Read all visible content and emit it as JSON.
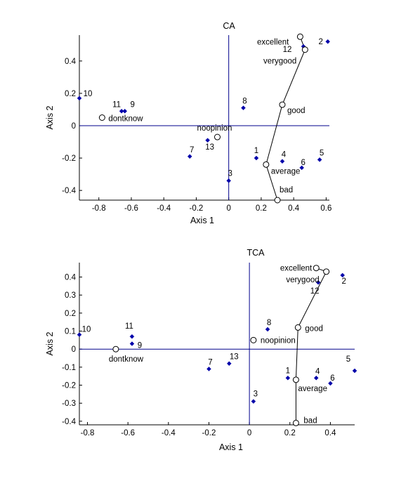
{
  "chart_data": [
    {
      "type": "scatter",
      "title": "CA",
      "xlabel": "Axis 1",
      "ylabel": "Axis 2",
      "xlim": [
        -0.92,
        0.62
      ],
      "ylim": [
        -0.46,
        0.56
      ],
      "xticks": [
        -0.8,
        -0.6,
        -0.4,
        -0.2,
        0,
        0.2,
        0.4,
        0.6
      ],
      "xtick_labels": [
        "-0.8",
        "-0.6",
        "-0.4",
        "-0.2",
        "0",
        "0.2",
        "0.4",
        "0.6"
      ],
      "yticks": [
        -0.4,
        -0.2,
        0,
        0.2,
        0.4
      ],
      "ytick_labels": [
        "-0.4",
        "-0.2",
        "0",
        "0.2",
        "0.4"
      ],
      "row_points": [
        {
          "label": "1",
          "x": 0.17,
          "y": -0.2
        },
        {
          "label": "2",
          "x": 0.61,
          "y": 0.52
        },
        {
          "label": "3",
          "x": 0.0,
          "y": -0.34
        },
        {
          "label": "4",
          "x": 0.33,
          "y": -0.22
        },
        {
          "label": "5",
          "x": 0.56,
          "y": -0.21
        },
        {
          "label": "6",
          "x": 0.45,
          "y": -0.26
        },
        {
          "label": "7",
          "x": -0.24,
          "y": -0.19
        },
        {
          "label": "8",
          "x": 0.09,
          "y": 0.11
        },
        {
          "label": "9",
          "x": -0.64,
          "y": 0.09
        },
        {
          "label": "10",
          "x": -0.92,
          "y": 0.17
        },
        {
          "label": "11",
          "x": -0.66,
          "y": 0.09
        },
        {
          "label": "12",
          "x": 0.46,
          "y": 0.49
        },
        {
          "label": "13",
          "x": -0.13,
          "y": -0.09
        }
      ],
      "column_points": [
        {
          "label": "excellent",
          "x": 0.44,
          "y": 0.55
        },
        {
          "label": "verygood",
          "x": 0.47,
          "y": 0.47
        },
        {
          "label": "good",
          "x": 0.33,
          "y": 0.13
        },
        {
          "label": "average",
          "x": 0.23,
          "y": -0.24
        },
        {
          "label": "bad",
          "x": 0.3,
          "y": -0.46
        },
        {
          "label": "noopinion",
          "x": -0.07,
          "y": -0.07
        },
        {
          "label": "dontknow",
          "x": -0.78,
          "y": 0.05
        }
      ],
      "connected_path": [
        "excellent",
        "verygood",
        "good",
        "average",
        "bad"
      ]
    },
    {
      "type": "scatter",
      "title": "TCA",
      "xlabel": "Axis 1",
      "ylabel": "Axis 2",
      "xlim": [
        -0.84,
        0.52
      ],
      "ylim": [
        -0.42,
        0.48
      ],
      "xticks": [
        -0.8,
        -0.6,
        -0.4,
        -0.2,
        0,
        0.2,
        0.4
      ],
      "xtick_labels": [
        "-0.8",
        "-0.6",
        "-0.4",
        "-0.2",
        "0",
        "0.2",
        "0.4"
      ],
      "yticks": [
        -0.4,
        -0.3,
        -0.2,
        -0.1,
        0,
        0.1,
        0.2,
        0.3,
        0.4
      ],
      "ytick_labels": [
        "-0.4",
        "-0.3",
        "-0.2",
        "-0.1",
        "0",
        "0.1",
        "0.2",
        "0.3",
        "0.4"
      ],
      "row_points": [
        {
          "label": "1",
          "x": 0.19,
          "y": -0.16
        },
        {
          "label": "2",
          "x": 0.46,
          "y": 0.41
        },
        {
          "label": "3",
          "x": 0.02,
          "y": -0.29
        },
        {
          "label": "4",
          "x": 0.33,
          "y": -0.16
        },
        {
          "label": "5",
          "x": 0.52,
          "y": -0.12
        },
        {
          "label": "6",
          "x": 0.4,
          "y": -0.19
        },
        {
          "label": "7",
          "x": -0.2,
          "y": -0.11
        },
        {
          "label": "8",
          "x": 0.09,
          "y": 0.11
        },
        {
          "label": "9",
          "x": -0.58,
          "y": 0.03
        },
        {
          "label": "10",
          "x": -0.84,
          "y": 0.08
        },
        {
          "label": "11",
          "x": -0.58,
          "y": 0.07
        },
        {
          "label": "12",
          "x": 0.34,
          "y": 0.37
        },
        {
          "label": "13",
          "x": -0.1,
          "y": -0.08
        }
      ],
      "column_points": [
        {
          "label": "excellent",
          "x": 0.33,
          "y": 0.45
        },
        {
          "label": "verygood",
          "x": 0.38,
          "y": 0.43
        },
        {
          "label": "good",
          "x": 0.24,
          "y": 0.12
        },
        {
          "label": "average",
          "x": 0.23,
          "y": -0.17
        },
        {
          "label": "bad",
          "x": 0.23,
          "y": -0.41
        },
        {
          "label": "noopinion",
          "x": 0.02,
          "y": 0.05
        },
        {
          "label": "dontknow",
          "x": -0.66,
          "y": 0.0
        }
      ],
      "connected_path": [
        "excellent",
        "verygood",
        "good",
        "average",
        "bad"
      ]
    }
  ],
  "colors": {
    "row_marker": "#0000aa",
    "axis_line": "#00008b",
    "path_line": "#000000",
    "column_marker_stroke": "#000000",
    "column_marker_fill": "#ffffff"
  }
}
